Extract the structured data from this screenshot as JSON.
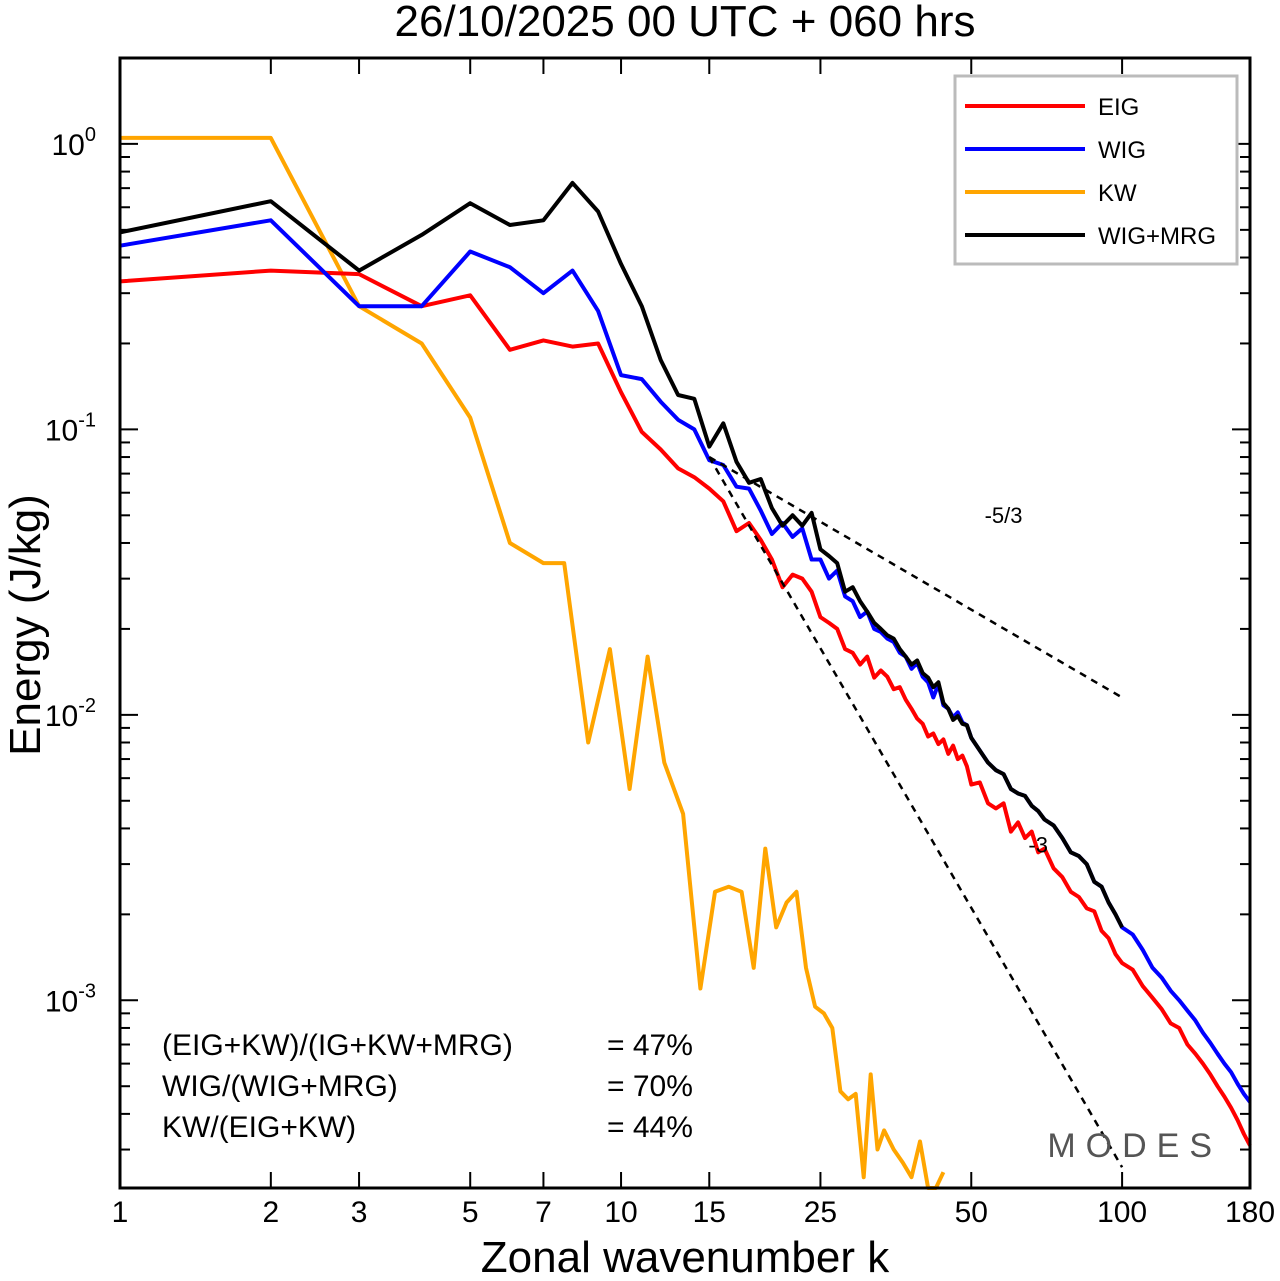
{
  "chart_data": {
    "type": "line",
    "title": "26/10/2025  00 UTC  + 060 hrs",
    "xlabel": "Zonal wavenumber k",
    "ylabel": "Energy (J/kg)",
    "xscale": "log",
    "yscale": "log",
    "xlim": [
      1,
      180
    ],
    "ylim": [
      0.00022,
      2.0
    ],
    "x_ticks": [
      1,
      2,
      3,
      5,
      7,
      10,
      15,
      25,
      50,
      100,
      180
    ],
    "x_tick_labels": [
      "1",
      "2",
      "3",
      "5",
      "7",
      "10",
      "15",
      "25",
      "50",
      "100",
      "180"
    ],
    "y_ticks": [
      {
        "value": 1,
        "base": "10",
        "exp": "0"
      },
      {
        "value": 0.1,
        "base": "10",
        "exp": "-1"
      },
      {
        "value": 0.01,
        "base": "10",
        "exp": "-2"
      },
      {
        "value": 0.001,
        "base": "10",
        "exp": "-3"
      }
    ],
    "legend_position": "top-right",
    "series": [
      {
        "name": "EIG",
        "color": "#ff0000",
        "points": [
          [
            1,
            0.33
          ],
          [
            2,
            0.36
          ],
          [
            3,
            0.35
          ],
          [
            4,
            0.27
          ],
          [
            5,
            0.295
          ],
          [
            6,
            0.19
          ],
          [
            7,
            0.205
          ],
          [
            8,
            0.195
          ],
          [
            9,
            0.2
          ],
          [
            10,
            0.135
          ],
          [
            11,
            0.098
          ],
          [
            12,
            0.085
          ],
          [
            13,
            0.073
          ],
          [
            14,
            0.068
          ],
          [
            15,
            0.062
          ],
          [
            16,
            0.056
          ],
          [
            17,
            0.044
          ],
          [
            18,
            0.047
          ],
          [
            19,
            0.041
          ],
          [
            20,
            0.035
          ],
          [
            21,
            0.028
          ],
          [
            22,
            0.031
          ],
          [
            23,
            0.03
          ],
          [
            24,
            0.027
          ],
          [
            25,
            0.022
          ],
          [
            26,
            0.021
          ],
          [
            27,
            0.02
          ],
          [
            28,
            0.017
          ],
          [
            29,
            0.0165
          ],
          [
            30,
            0.015
          ],
          [
            31,
            0.016
          ],
          [
            32,
            0.0135
          ],
          [
            33,
            0.0143
          ],
          [
            34,
            0.0136
          ],
          [
            35,
            0.0123
          ],
          [
            36,
            0.0125
          ],
          [
            37,
            0.0113
          ],
          [
            38,
            0.0105
          ],
          [
            39,
            0.0097
          ],
          [
            40,
            0.0093
          ],
          [
            41,
            0.0084
          ],
          [
            42,
            0.0086
          ],
          [
            43,
            0.0079
          ],
          [
            44,
            0.0082
          ],
          [
            45,
            0.0073
          ],
          [
            46,
            0.0078
          ],
          [
            47,
            0.007
          ],
          [
            48,
            0.0072
          ],
          [
            49,
            0.0066
          ],
          [
            50,
            0.0057
          ],
          [
            52,
            0.0058
          ],
          [
            54,
            0.0049
          ],
          [
            56,
            0.0047
          ],
          [
            58,
            0.0049
          ],
          [
            60,
            0.0039
          ],
          [
            62,
            0.0042
          ],
          [
            64,
            0.0037
          ],
          [
            66,
            0.0039
          ],
          [
            68,
            0.0033
          ],
          [
            70,
            0.0034
          ],
          [
            73,
            0.0029
          ],
          [
            76,
            0.0027
          ],
          [
            79,
            0.0024
          ],
          [
            82,
            0.0023
          ],
          [
            85,
            0.0021
          ],
          [
            88,
            0.00205
          ],
          [
            91,
            0.00175
          ],
          [
            94,
            0.00165
          ],
          [
            97,
            0.00145
          ],
          [
            100,
            0.00135
          ],
          [
            105,
            0.00128
          ],
          [
            110,
            0.00112
          ],
          [
            115,
            0.00102
          ],
          [
            120,
            0.00093
          ],
          [
            125,
            0.00083
          ],
          [
            130,
            0.0008
          ],
          [
            135,
            0.0007
          ],
          [
            140,
            0.00065
          ],
          [
            145,
            0.0006
          ],
          [
            150,
            0.00055
          ],
          [
            155,
            0.0005
          ],
          [
            160,
            0.00046
          ],
          [
            165,
            0.00042
          ],
          [
            170,
            0.00038
          ],
          [
            175,
            0.00034
          ],
          [
            180,
            0.00031
          ]
        ]
      },
      {
        "name": "WIG",
        "color": "#0000ff",
        "points": [
          [
            1,
            0.44
          ],
          [
            2,
            0.54
          ],
          [
            3,
            0.27
          ],
          [
            4,
            0.27
          ],
          [
            5,
            0.42
          ],
          [
            6,
            0.37
          ],
          [
            7,
            0.3
          ],
          [
            8,
            0.36
          ],
          [
            9,
            0.26
          ],
          [
            10,
            0.155
          ],
          [
            11,
            0.15
          ],
          [
            12,
            0.125
          ],
          [
            13,
            0.108
          ],
          [
            14,
            0.1
          ],
          [
            15,
            0.078
          ],
          [
            16,
            0.075
          ],
          [
            17,
            0.063
          ],
          [
            18,
            0.062
          ],
          [
            19,
            0.052
          ],
          [
            20,
            0.043
          ],
          [
            21,
            0.047
          ],
          [
            22,
            0.042
          ],
          [
            23,
            0.045
          ],
          [
            24,
            0.035
          ],
          [
            25,
            0.035
          ],
          [
            26,
            0.03
          ],
          [
            27,
            0.032
          ],
          [
            28,
            0.026
          ],
          [
            29,
            0.025
          ],
          [
            30,
            0.022
          ],
          [
            31,
            0.023
          ],
          [
            32,
            0.02
          ],
          [
            33,
            0.0195
          ],
          [
            34,
            0.0185
          ],
          [
            35,
            0.018
          ],
          [
            36,
            0.0165
          ],
          [
            37,
            0.016
          ],
          [
            38,
            0.0145
          ],
          [
            39,
            0.0152
          ],
          [
            40,
            0.0136
          ],
          [
            41,
            0.013
          ],
          [
            42,
            0.0115
          ],
          [
            43,
            0.0128
          ],
          [
            44,
            0.0108
          ],
          [
            45,
            0.0105
          ],
          [
            46,
            0.0098
          ],
          [
            47,
            0.0102
          ],
          [
            48,
            0.0094
          ],
          [
            49,
            0.0092
          ],
          [
            50,
            0.0083
          ],
          [
            52,
            0.0075
          ],
          [
            54,
            0.0068
          ],
          [
            56,
            0.0064
          ],
          [
            58,
            0.0062
          ],
          [
            60,
            0.0055
          ],
          [
            62,
            0.0053
          ],
          [
            64,
            0.0052
          ],
          [
            66,
            0.0048
          ],
          [
            68,
            0.0046
          ],
          [
            70,
            0.0043
          ],
          [
            73,
            0.0041
          ],
          [
            76,
            0.0037
          ],
          [
            79,
            0.0033
          ],
          [
            82,
            0.0032
          ],
          [
            85,
            0.003
          ],
          [
            88,
            0.0026
          ],
          [
            91,
            0.0025
          ],
          [
            94,
            0.0022
          ],
          [
            97,
            0.002
          ],
          [
            100,
            0.0018
          ],
          [
            105,
            0.0017
          ],
          [
            110,
            0.0015
          ],
          [
            115,
            0.0013
          ],
          [
            120,
            0.0012
          ],
          [
            125,
            0.00108
          ],
          [
            130,
            0.001
          ],
          [
            135,
            0.00092
          ],
          [
            140,
            0.00085
          ],
          [
            145,
            0.00077
          ],
          [
            150,
            0.00071
          ],
          [
            155,
            0.00065
          ],
          [
            160,
            0.0006
          ],
          [
            165,
            0.00056
          ],
          [
            170,
            0.00051
          ],
          [
            175,
            0.00047
          ],
          [
            180,
            0.00044
          ]
        ]
      },
      {
        "name": "KW",
        "color": "#ffa500",
        "points": [
          [
            1,
            1.05
          ],
          [
            2,
            1.05
          ],
          [
            3,
            0.27
          ],
          [
            4,
            0.2
          ],
          [
            5,
            0.11
          ],
          [
            6,
            0.04
          ],
          [
            7,
            0.034
          ],
          [
            7.7,
            0.034
          ],
          [
            8.6,
            0.008
          ],
          [
            9.5,
            0.017
          ],
          [
            10.4,
            0.0055
          ],
          [
            11.3,
            0.016
          ],
          [
            12.2,
            0.0068
          ],
          [
            13.3,
            0.0045
          ],
          [
            14.4,
            0.0011
          ],
          [
            15.4,
            0.0024
          ],
          [
            16.4,
            0.0025
          ],
          [
            17.4,
            0.0024
          ],
          [
            18.4,
            0.0013
          ],
          [
            19.4,
            0.0034
          ],
          [
            20.4,
            0.0018
          ],
          [
            21.4,
            0.0022
          ],
          [
            22.4,
            0.0024
          ],
          [
            23.4,
            0.0013
          ],
          [
            24.4,
            0.00095
          ],
          [
            25.4,
            0.0009
          ],
          [
            26.4,
            0.0008
          ],
          [
            27.4,
            0.00048
          ],
          [
            28.4,
            0.00045
          ],
          [
            29.4,
            0.00047
          ],
          [
            30.5,
            0.00024
          ],
          [
            31.5,
            0.00055
          ],
          [
            32.5,
            0.0003
          ],
          [
            33.5,
            0.00035
          ],
          [
            35,
            0.0003
          ],
          [
            36.5,
            0.00027
          ],
          [
            38,
            0.00024
          ],
          [
            39.5,
            0.00032
          ],
          [
            41,
            0.0002
          ],
          [
            42.5,
            0.0002
          ],
          [
            44,
            0.00025
          ]
        ]
      },
      {
        "name": "WIG+MRG",
        "color": "#000000",
        "points": [
          [
            1,
            0.49
          ],
          [
            2,
            0.63
          ],
          [
            3,
            0.36
          ],
          [
            4,
            0.48
          ],
          [
            5,
            0.62
          ],
          [
            6,
            0.52
          ],
          [
            7,
            0.54
          ],
          [
            8,
            0.73
          ],
          [
            9,
            0.58
          ],
          [
            10,
            0.38
          ],
          [
            11,
            0.27
          ],
          [
            12,
            0.175
          ],
          [
            13,
            0.132
          ],
          [
            14,
            0.128
          ],
          [
            15,
            0.087
          ],
          [
            16,
            0.105
          ],
          [
            17,
            0.077
          ],
          [
            18,
            0.065
          ],
          [
            19,
            0.067
          ],
          [
            20,
            0.053
          ],
          [
            21,
            0.046
          ],
          [
            22,
            0.05
          ],
          [
            23,
            0.046
          ],
          [
            24,
            0.051
          ],
          [
            25,
            0.038
          ],
          [
            26,
            0.036
          ],
          [
            27,
            0.034
          ],
          [
            28,
            0.027
          ],
          [
            29,
            0.028
          ],
          [
            30,
            0.025
          ],
          [
            31,
            0.023
          ],
          [
            32,
            0.021
          ],
          [
            33,
            0.02
          ],
          [
            34,
            0.019
          ],
          [
            35,
            0.0185
          ],
          [
            36,
            0.017
          ],
          [
            37,
            0.016
          ],
          [
            38,
            0.015
          ],
          [
            39,
            0.0155
          ],
          [
            40,
            0.014
          ],
          [
            41,
            0.0135
          ],
          [
            42,
            0.0125
          ],
          [
            43,
            0.013
          ],
          [
            44,
            0.011
          ],
          [
            45,
            0.0105
          ],
          [
            46,
            0.0096
          ],
          [
            47,
            0.0099
          ],
          [
            48,
            0.0093
          ],
          [
            49,
            0.0092
          ],
          [
            50,
            0.0083
          ],
          [
            52,
            0.0075
          ],
          [
            54,
            0.0068
          ],
          [
            56,
            0.0064
          ],
          [
            58,
            0.0062
          ],
          [
            60,
            0.0055
          ],
          [
            62,
            0.0053
          ],
          [
            64,
            0.0052
          ],
          [
            66,
            0.0048
          ],
          [
            68,
            0.0046
          ],
          [
            70,
            0.0043
          ],
          [
            73,
            0.0041
          ],
          [
            76,
            0.0037
          ],
          [
            79,
            0.0033
          ],
          [
            82,
            0.0032
          ],
          [
            85,
            0.003
          ],
          [
            88,
            0.0026
          ],
          [
            91,
            0.0025
          ],
          [
            94,
            0.0022
          ],
          [
            97,
            0.002
          ],
          [
            100,
            0.0018
          ]
        ]
      }
    ],
    "reference_lines": [
      {
        "label": "-5/3",
        "slope": -1.6667,
        "x_start": 15,
        "y_start": 0.08,
        "x_end": 100,
        "y_end": 0.0115,
        "label_x": 58,
        "label_y": 0.047
      },
      {
        "label": "-3",
        "slope": -3,
        "x_start": 15,
        "y_start": 0.08,
        "x_end": 100,
        "y_end": 0.00026,
        "label_x": 68,
        "label_y": 0.0033
      }
    ],
    "annotations": [
      {
        "label": "(EIG+KW)/(IG+KW+MRG)",
        "value": "= 47%"
      },
      {
        "label": "WIG/(WIG+MRG)",
        "value": "= 70%"
      },
      {
        "label": "KW/(EIG+KW)",
        "value": "= 44%"
      }
    ],
    "logo": "MODES"
  }
}
